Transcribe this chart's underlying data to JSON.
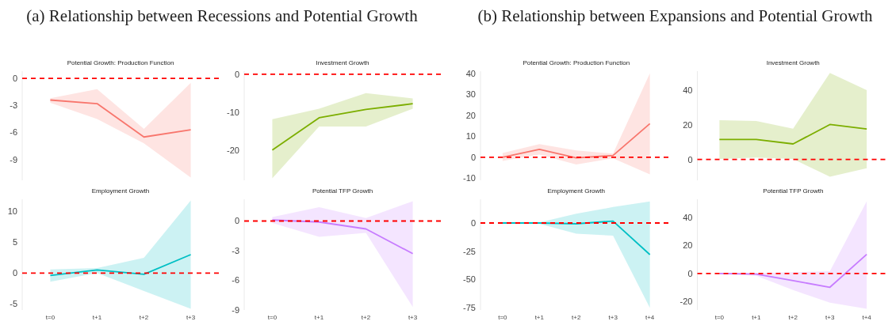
{
  "chart_data": [
    {
      "type": "other",
      "title": "(a) Relationship between Recessions and Potential Growth"
    },
    {
      "type": "line",
      "title": "Potential Growth: Production Function",
      "categories": [
        null,
        null,
        null,
        null
      ],
      "tick_labels": "y",
      "ylim": [
        -11.3,
        0.8
      ],
      "yticks": [
        0,
        -3,
        -6,
        -9
      ],
      "ref_lines": [
        {
          "axis": "y",
          "value": 0,
          "color": "#ff0000",
          "line_style": "dashed"
        }
      ],
      "series": [
        {
          "color": "#f8766d",
          "values": [
            -2.4,
            -2.8,
            -6.5,
            -5.7
          ],
          "lower": [
            -2.7,
            -4.5,
            -7.2,
            -11
          ],
          "upper": [
            -2.2,
            -1.2,
            -5.6,
            -0.5
          ]
        }
      ]
    },
    {
      "type": "line",
      "title": "Investment Growth",
      "categories": [
        null,
        null,
        null,
        null
      ],
      "tick_labels": "y",
      "ylim": [
        -28,
        0.8
      ],
      "yticks": [
        0,
        -10,
        -20
      ],
      "ref_lines": [
        {
          "axis": "y",
          "value": 0,
          "color": "#ff0000",
          "line_style": "dashed"
        }
      ],
      "series": [
        {
          "color": "#7cae00",
          "values": [
            -20,
            -11.5,
            -9.3,
            -7.8
          ],
          "lower": [
            -27.5,
            -13.8,
            -13.8,
            -9.1
          ],
          "upper": [
            -11.9,
            -9.1,
            -5,
            -6.4
          ]
        }
      ]
    },
    {
      "type": "line",
      "title": "Employment Growth",
      "categories": [
        "t=0",
        "t+1",
        "t+2",
        "t+3"
      ],
      "ylim": [
        -6,
        12
      ],
      "yticks": [
        10,
        5,
        0,
        -5
      ],
      "ref_lines": [
        {
          "axis": "y",
          "value": 0,
          "color": "#ff0000",
          "line_style": "dashed"
        }
      ],
      "series": [
        {
          "color": "#00bfc4",
          "values": [
            -0.4,
            0.5,
            -0.2,
            3
          ],
          "lower": [
            -1.4,
            0,
            -2.9,
            -5.8
          ],
          "upper": [
            0.6,
            0.8,
            2.5,
            11.8
          ]
        }
      ]
    },
    {
      "type": "line",
      "title": "Potential TFP Growth",
      "categories": [
        "t=0",
        "t+1",
        "t+2",
        "t+3"
      ],
      "ylim": [
        -9,
        2.2
      ],
      "yticks": [
        0,
        -3,
        -6,
        -9
      ],
      "ref_lines": [
        {
          "axis": "y",
          "value": 0,
          "color": "#ff0000",
          "line_style": "dashed"
        }
      ],
      "series": [
        {
          "color": "#c77cff",
          "values": [
            0.1,
            -0.1,
            -0.8,
            -3.3
          ],
          "lower": [
            -0.2,
            -1.6,
            -1.2,
            -8.7
          ],
          "upper": [
            0.4,
            1.4,
            0.3,
            2
          ]
        }
      ]
    },
    {
      "type": "other",
      "title": "(b) Relationship between Expansions and Potential Growth"
    },
    {
      "type": "line",
      "title": "Potential Growth: Production Function",
      "categories": [
        null,
        null,
        null,
        null,
        null
      ],
      "tick_labels": "y",
      "ylim": [
        -11,
        41
      ],
      "yticks": [
        40,
        30,
        20,
        10,
        0,
        -10
      ],
      "ref_lines": [
        {
          "axis": "y",
          "value": 0,
          "color": "#ff0000",
          "line_style": "dashed"
        }
      ],
      "series": [
        {
          "color": "#f8766d",
          "values": [
            0,
            3.7,
            -0.3,
            0.8,
            16
          ],
          "lower": [
            -1.8,
            1.2,
            -3.5,
            -0.5,
            -8.2
          ],
          "upper": [
            2,
            6.2,
            3.2,
            1.7,
            40
          ]
        }
      ]
    },
    {
      "type": "line",
      "title": "Investment Growth",
      "categories": [
        null,
        null,
        null,
        null,
        null
      ],
      "tick_labels": "y",
      "ylim": [
        -12,
        51
      ],
      "yticks": [
        40,
        20,
        0
      ],
      "ref_lines": [
        {
          "axis": "y",
          "value": 0,
          "color": "#ff0000",
          "line_style": "dashed"
        }
      ],
      "series": [
        {
          "color": "#7cae00",
          "values": [
            11.6,
            11.6,
            9,
            20.2,
            17.6
          ],
          "lower": [
            0.3,
            1.1,
            0.3,
            -10,
            -5
          ],
          "upper": [
            22.7,
            22.2,
            17.8,
            50,
            40
          ]
        }
      ]
    },
    {
      "type": "line",
      "title": "Employment Growth",
      "categories": [
        "t=0",
        "t+1",
        "t+2",
        "t+3",
        "t+4"
      ],
      "ylim": [
        -77,
        21
      ],
      "yticks": [
        0,
        -25,
        -50,
        -75
      ],
      "ref_lines": [
        {
          "axis": "y",
          "value": 0,
          "color": "#ff0000",
          "line_style": "dashed"
        }
      ],
      "series": [
        {
          "color": "#00bfc4",
          "values": [
            0,
            0,
            -0.7,
            1.7,
            -28
          ],
          "lower": [
            0,
            -0.7,
            -9.4,
            -11.2,
            -75
          ],
          "upper": [
            0,
            0.5,
            8.2,
            14.1,
            19
          ]
        }
      ]
    },
    {
      "type": "line",
      "title": "Potential TFP Growth",
      "categories": [
        "t=0",
        "t+1",
        "t+2",
        "t+3",
        "t+4"
      ],
      "ylim": [
        -26,
        53
      ],
      "yticks": [
        40,
        20,
        0,
        -20
      ],
      "ref_lines": [
        {
          "axis": "y",
          "value": 0,
          "color": "#ff0000",
          "line_style": "dashed"
        }
      ],
      "series": [
        {
          "color": "#c77cff",
          "values": [
            0,
            -0.4,
            -5.1,
            -9.8,
            13.7
          ],
          "lower": [
            0,
            -1.6,
            -11.8,
            -20.8,
            -25.1
          ],
          "upper": [
            0,
            0.4,
            1,
            1.6,
            51.6
          ]
        }
      ]
    }
  ]
}
